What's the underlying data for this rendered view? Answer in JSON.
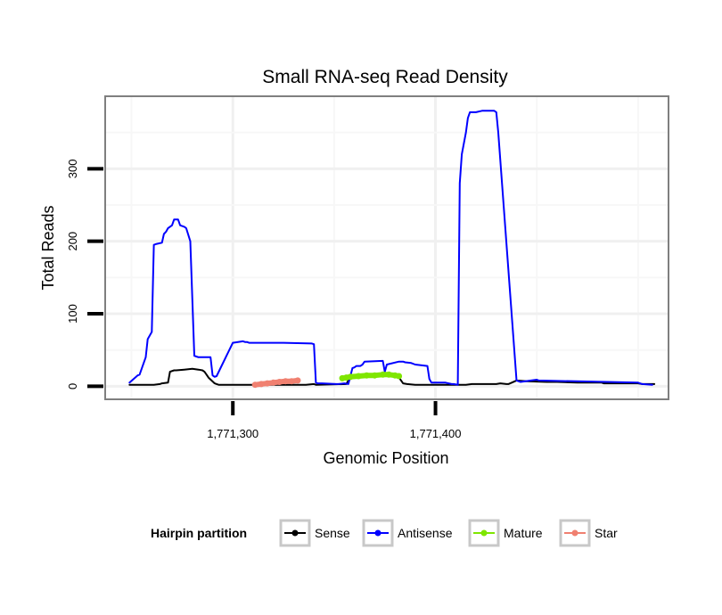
{
  "chart_data": {
    "type": "line",
    "title": "Small RNA-seq Read Density",
    "xlabel": "Genomic Position",
    "ylabel": "Total Reads",
    "xlim": [
      1771237,
      1771515
    ],
    "ylim": [
      -18,
      400
    ],
    "x_ticks": [
      {
        "value": 1771300,
        "label": "1,771,300"
      },
      {
        "value": 1771400,
        "label": "1,771,400"
      }
    ],
    "y_ticks": [
      {
        "value": 0,
        "label": "0"
      },
      {
        "value": 100,
        "label": "100"
      },
      {
        "value": 200,
        "label": "200"
      },
      {
        "value": 300,
        "label": "300"
      }
    ],
    "grid": true,
    "legend": {
      "title": "Hairpin partition",
      "position": "bottom",
      "entries": [
        "Sense",
        "Antisense",
        "Mature",
        "Star"
      ]
    },
    "series": [
      {
        "name": "Sense",
        "color": "#000000",
        "x": [
          1771249,
          1771261,
          1771264,
          1771265,
          1771268,
          1771269,
          1771271,
          1771272,
          1771276,
          1771280,
          1771283,
          1771285,
          1771286,
          1771287,
          1771288,
          1771291,
          1771292,
          1771293,
          1771294,
          1771300,
          1771330,
          1771336,
          1771340,
          1771341,
          1771356,
          1771357,
          1771358,
          1771360,
          1771370,
          1771375,
          1771379,
          1771382,
          1771384,
          1771386,
          1771390,
          1771395,
          1771400,
          1771405,
          1771410,
          1771414,
          1771415,
          1771418,
          1771420,
          1771430,
          1771432,
          1771435,
          1771436,
          1771440,
          1771445,
          1771455,
          1771460,
          1771470,
          1771482,
          1771483,
          1771500,
          1771502,
          1771508
        ],
        "y": [
          2,
          2,
          3,
          4,
          5,
          20,
          22,
          22,
          23,
          24,
          23,
          22,
          20,
          16,
          12,
          4,
          3,
          2,
          2,
          2,
          2,
          2,
          3,
          2,
          3,
          8,
          10,
          12,
          15,
          16,
          14,
          12,
          4,
          3,
          2,
          2,
          2,
          2,
          2,
          2,
          2,
          3,
          3,
          3,
          4,
          3,
          3,
          8,
          7,
          6,
          6,
          5,
          5,
          4,
          4,
          3,
          3
        ]
      },
      {
        "name": "Antisense",
        "color": "#0000ff",
        "x": [
          1771249,
          1771253,
          1771254,
          1771257,
          1771258,
          1771260,
          1771261,
          1771262,
          1771265,
          1771266,
          1771267,
          1771268,
          1771270,
          1771271,
          1771273,
          1771274,
          1771276,
          1771277,
          1771279,
          1771281,
          1771282,
          1771283,
          1771289,
          1771290,
          1771291,
          1771292,
          1771300,
          1771305,
          1771306,
          1771307,
          1771308,
          1771325,
          1771339,
          1771340,
          1771341,
          1771342,
          1771344,
          1771351,
          1771352,
          1771355,
          1771357,
          1771359,
          1771360,
          1771361,
          1771363,
          1771364,
          1771365,
          1771374,
          1771375,
          1771376,
          1771382,
          1771384,
          1771385,
          1771388,
          1771390,
          1771396,
          1771397,
          1771398,
          1771405,
          1771408,
          1771409,
          1771411,
          1771412,
          1771413,
          1771415,
          1771416,
          1771417,
          1771418,
          1771420,
          1771423,
          1771428,
          1771429,
          1771430,
          1771431,
          1771440,
          1771442,
          1771450,
          1771451,
          1771500,
          1771502,
          1771507
        ],
        "y": [
          5,
          15,
          16,
          40,
          65,
          75,
          195,
          196,
          198,
          210,
          213,
          218,
          222,
          230,
          230,
          222,
          220,
          218,
          200,
          42,
          41,
          40,
          40,
          15,
          13,
          14,
          60,
          62,
          61,
          61,
          60,
          60,
          59,
          58,
          5,
          4,
          4,
          3,
          3,
          4,
          3,
          25,
          26,
          28,
          28,
          30,
          34,
          35,
          20,
          30,
          34,
          34,
          33,
          32,
          30,
          28,
          10,
          5,
          5,
          3,
          3,
          2,
          280,
          320,
          350,
          370,
          378,
          378,
          378,
          380,
          380,
          380,
          378,
          350,
          8,
          6,
          9,
          8,
          5,
          3,
          2
        ]
      },
      {
        "name": "Mature",
        "color": "#7fe600",
        "x": [
          1771354,
          1771356,
          1771358,
          1771362,
          1771366,
          1771370,
          1771374,
          1771377,
          1771380,
          1771382
        ],
        "y": [
          11,
          12,
          13,
          14,
          15,
          15,
          16,
          16,
          15,
          14
        ]
      },
      {
        "name": "Star",
        "color": "#f08070",
        "x": [
          1771311,
          1771314,
          1771317,
          1771320,
          1771323,
          1771326,
          1771329,
          1771332
        ],
        "y": [
          2,
          3,
          4,
          5,
          6,
          7,
          7,
          8
        ]
      }
    ]
  }
}
